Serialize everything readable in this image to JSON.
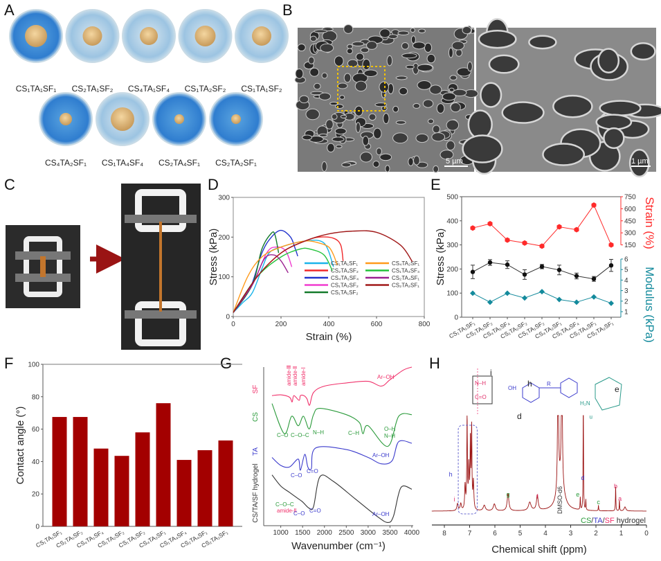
{
  "panel_labels": [
    "A",
    "B",
    "C",
    "D",
    "E",
    "F",
    "G",
    "H"
  ],
  "panel_a": {
    "row1": [
      "CS₁TA₁SF₁",
      "CS₂TA₁SF₂",
      "CS₄TA₁SF₄",
      "CS₁TA₂SF₂",
      "CS₁TA₁SF₂"
    ],
    "row2": [
      "CS₄TA₂SF₁",
      "CS₁TA₄SF₄",
      "CS₂TA₄SF₁",
      "CS₂TA₂SF₁"
    ]
  },
  "panel_b": {
    "scale_left": "5 µm",
    "scale_right": "1 µm"
  },
  "colors": {
    "bar": "#a30000",
    "strain": "#ff2a2a",
    "modulus": "#138a9c",
    "stress": "#111111"
  },
  "chart_data": {
    "D": {
      "type": "line",
      "xlabel": "Strain (%)",
      "ylabel": "Stress (kPa)",
      "xlim": [
        0,
        800
      ],
      "ylim": [
        0,
        300
      ],
      "xticks": [
        "0",
        "200",
        "400",
        "600",
        "800"
      ],
      "yticks": [
        "0",
        "100",
        "200",
        "300"
      ],
      "series": [
        {
          "name": "CS₁TA₁SF₁",
          "color": "#1ab4ea",
          "points": [
            [
              0,
              10
            ],
            [
              40,
              35
            ],
            [
              80,
              60
            ],
            [
              120,
              120
            ],
            [
              150,
              160
            ],
            [
              200,
              175
            ],
            [
              300,
              190
            ],
            [
              380,
              185
            ],
            [
              420,
              125
            ]
          ]
        },
        {
          "name": "CS₂TA₁SF₂",
          "color": "#f0282a",
          "points": [
            [
              0,
              10
            ],
            [
              100,
              100
            ],
            [
              200,
              160
            ],
            [
              300,
              190
            ],
            [
              360,
              200
            ],
            [
              420,
              197
            ],
            [
              450,
              180
            ],
            [
              460,
              140
            ]
          ]
        },
        {
          "name": "CS₄TA₁SF₄",
          "color": "#2233cc",
          "points": [
            [
              0,
              10
            ],
            [
              70,
              70
            ],
            [
              120,
              160
            ],
            [
              160,
              200
            ],
            [
              200,
              217
            ],
            [
              240,
              200
            ],
            [
              260,
              170
            ],
            [
              270,
              152
            ]
          ]
        },
        {
          "name": "CS₁TA₂SF₂",
          "color": "#f03ccf",
          "points": [
            [
              0,
              10
            ],
            [
              80,
              80
            ],
            [
              140,
              160
            ],
            [
              180,
              175
            ],
            [
              220,
              165
            ],
            [
              245,
              125
            ]
          ]
        },
        {
          "name": "CS₁TA₁SF₂",
          "color": "#137a2a",
          "points": [
            [
              0,
              10
            ],
            [
              80,
              80
            ],
            [
              120,
              170
            ],
            [
              160,
              210
            ],
            [
              175,
              205
            ],
            [
              190,
              160
            ]
          ]
        },
        {
          "name": "CS₄TA₂SF₁",
          "color": "#ff9a1a",
          "points": [
            [
              0,
              10
            ],
            [
              60,
              100
            ],
            [
              120,
              150
            ],
            [
              200,
              175
            ],
            [
              300,
              190
            ],
            [
              360,
              185
            ],
            [
              400,
              175
            ],
            [
              420,
              155
            ],
            [
              435,
              130
            ]
          ]
        },
        {
          "name": "CS₁TA₄SF₄",
          "color": "#22c23a",
          "points": [
            [
              0,
              10
            ],
            [
              100,
              100
            ],
            [
              200,
              150
            ],
            [
              280,
              170
            ],
            [
              320,
              170
            ],
            [
              380,
              155
            ],
            [
              415,
              115
            ]
          ]
        },
        {
          "name": "CS₂TA₄SF₁",
          "color": "#9a2090",
          "points": [
            [
              0,
              10
            ],
            [
              80,
              80
            ],
            [
              130,
              145
            ],
            [
              170,
              155
            ],
            [
              200,
              140
            ],
            [
              230,
              110
            ]
          ]
        },
        {
          "name": "CS₂TA₂SF₁",
          "color": "#a01818",
          "points": [
            [
              0,
              10
            ],
            [
              100,
              100
            ],
            [
              200,
              160
            ],
            [
              300,
              190
            ],
            [
              400,
              208
            ],
            [
              500,
              215
            ],
            [
              600,
              212
            ],
            [
              700,
              180
            ],
            [
              750,
              138
            ]
          ]
        }
      ]
    },
    "E": {
      "type": "line",
      "ylabel": "Stress (kPa)",
      "y2label_strain": "Strain (%)",
      "y2label_modulus": "Modulus (kPa)",
      "ylim": [
        0,
        500
      ],
      "yticks": [
        "0",
        "100",
        "200",
        "300",
        "400",
        "500"
      ],
      "strain_ticks": [
        "150",
        "300",
        "450",
        "600",
        "750"
      ],
      "modulus_ticks": [
        "1",
        "2",
        "3",
        "4",
        "5",
        "6"
      ],
      "categories": [
        "CS₁TA₁SF₁",
        "CS₂TA₁SF₂",
        "CS₄TA₁SF₄",
        "CS₁TA₂SF₂",
        "CS₁TA₁SF₂",
        "CS₄TA₂SF₁",
        "CS₁TA₄SF₄",
        "CS₂TA₄SF₁",
        "CS₂TA₂SF₁"
      ],
      "stress": [
        188,
        227,
        218,
        177,
        210,
        196,
        171,
        159,
        215
      ],
      "stress_err": [
        28,
        12,
        16,
        20,
        9,
        20,
        12,
        10,
        25
      ],
      "strain": [
        360,
        414,
        210,
        174,
        135,
        375,
        339,
        645,
        150
      ],
      "modulus": [
        2.75,
        1.9,
        2.75,
        2.3,
        2.9,
        2.15,
        1.9,
        2.4,
        1.8
      ]
    },
    "F": {
      "type": "bar",
      "ylabel": "Contact angle (°)",
      "ylim": [
        0,
        100
      ],
      "yticks": [
        "0",
        "20",
        "40",
        "60",
        "80",
        "100"
      ],
      "categories": [
        "CS₁TA₁SF₁",
        "CS₂TA₁SF₂",
        "CS₄TA₁SF₄",
        "CS₁TA₂SF₂",
        "CS₁TA₁SF₂",
        "CS₄TA₂SF₁",
        "CS₁TA₄SF₄",
        "CS₂TA₄SF₁",
        "CS₂TA₂SF₁"
      ],
      "values": [
        67.5,
        67.5,
        48,
        43.5,
        58,
        76,
        41,
        47,
        53
      ]
    },
    "G": {
      "type": "line",
      "xlabel": "Wavenumber (cm⁻¹)",
      "xlim": [
        800,
        4000
      ],
      "xticks": [
        "1000",
        "1500",
        "2000",
        "2500",
        "3000",
        "3500",
        "4000"
      ],
      "series": [
        {
          "name": "SF",
          "color": "#f0306a",
          "points": [
            [
              800,
              82
            ],
            [
              1000,
              82.5
            ],
            [
              1200,
              81
            ],
            [
              1260,
              78
            ],
            [
              1300,
              82
            ],
            [
              1420,
              79
            ],
            [
              1450,
              82
            ],
            [
              1530,
              82
            ],
            [
              1600,
              80
            ],
            [
              1660,
              76
            ],
            [
              1750,
              84
            ],
            [
              2000,
              88
            ],
            [
              2500,
              90
            ],
            [
              3000,
              91
            ],
            [
              3300,
              88
            ],
            [
              3500,
              92
            ],
            [
              3800,
              98
            ],
            [
              4000,
              100
            ]
          ],
          "annotations": [
            "amide-Ⅲ",
            "amide-Ⅱ",
            "amide-Ⅰ",
            "Ar–OH"
          ]
        },
        {
          "name": "CS",
          "color": "#2a9a3a",
          "points": [
            [
              800,
              77
            ],
            [
              1080,
              58
            ],
            [
              1250,
              69
            ],
            [
              1400,
              63
            ],
            [
              1520,
              69
            ],
            [
              1650,
              61
            ],
            [
              1750,
              70
            ],
            [
              1900,
              74
            ],
            [
              2500,
              70
            ],
            [
              2800,
              65
            ],
            [
              2880,
              58
            ],
            [
              3000,
              63
            ],
            [
              3450,
              50
            ],
            [
              3700,
              69
            ],
            [
              4000,
              70
            ]
          ],
          "annotations": [
            "C–O",
            "C–O–C",
            "N–H",
            "C–H",
            "O–H",
            "N–H"
          ]
        },
        {
          "name": "TA",
          "color": "#3a3acc",
          "points": [
            [
              800,
              43
            ],
            [
              1000,
              38
            ],
            [
              1200,
              37
            ],
            [
              1400,
              42
            ],
            [
              1450,
              35
            ],
            [
              1550,
              45
            ],
            [
              1620,
              37
            ],
            [
              1700,
              36
            ],
            [
              1800,
              49
            ],
            [
              2500,
              48
            ],
            [
              3000,
              43
            ],
            [
              3300,
              39
            ],
            [
              3550,
              41
            ],
            [
              3700,
              53
            ],
            [
              4000,
              52
            ]
          ],
          "annotations": [
            "C–O",
            "C=O",
            "Ar–OH"
          ]
        },
        {
          "name": "CS/TA/SF hydrogel",
          "color": "#333333",
          "points": [
            [
              800,
              32
            ],
            [
              1000,
              25
            ],
            [
              1200,
              21
            ],
            [
              1400,
              17
            ],
            [
              1500,
              15
            ],
            [
              1650,
              11
            ],
            [
              1750,
              12
            ],
            [
              1900,
              31
            ],
            [
              2200,
              28
            ],
            [
              2700,
              17
            ],
            [
              3200,
              6
            ],
            [
              3450,
              2
            ],
            [
              3580,
              6
            ],
            [
              3750,
              24
            ],
            [
              4000,
              23
            ]
          ],
          "annotations": [
            "C–O–C",
            "amide-Ⅱ",
            "C–O",
            "C=O",
            "Ar–OH"
          ]
        }
      ]
    },
    "H": {
      "type": "line",
      "xlabel": "Chemical shift (ppm)",
      "xlim": [
        8.5,
        0
      ],
      "xticks": [
        "8",
        "7",
        "6",
        "5",
        "4",
        "3",
        "2",
        "1",
        "0"
      ],
      "legend": [
        "CS",
        "/",
        "TA",
        "/",
        "SF",
        " hydrogel"
      ],
      "solvent_label": "DMSO-d6",
      "peaks": [
        [
          7.48,
          10,
          0.03
        ],
        [
          7.35,
          10,
          0.03
        ],
        [
          7.18,
          35,
          0.02
        ],
        [
          7.1,
          130,
          0.015
        ],
        [
          7.03,
          60,
          0.02
        ],
        [
          6.97,
          95,
          0.015
        ],
        [
          6.92,
          115,
          0.015
        ],
        [
          6.85,
          40,
          0.02
        ],
        [
          6.42,
          8,
          0.05
        ],
        [
          6.02,
          10,
          0.05
        ],
        [
          5.48,
          25,
          0.04
        ],
        [
          4.62,
          12,
          0.06
        ],
        [
          4.32,
          22,
          0.04
        ],
        [
          3.5,
          220,
          0.02
        ],
        [
          3.4,
          45,
          0.15
        ],
        [
          3.35,
          220,
          0.02
        ],
        [
          2.62,
          18,
          0.01
        ],
        [
          2.5,
          220,
          0.008
        ],
        [
          2.4,
          15,
          0.01
        ],
        [
          1.9,
          8,
          0.01
        ],
        [
          1.22,
          35,
          0.01
        ],
        [
          1.07,
          15,
          0.01
        ],
        [
          0.85,
          6,
          0.04
        ]
      ],
      "peak_labels": [
        [
          "i",
          7.6,
          "#e0306a"
        ],
        [
          "h",
          7.75,
          "#3a3acc"
        ],
        [
          "g",
          5.48,
          "#2a9a3a"
        ],
        [
          "f",
          4.32,
          "#e0306a"
        ],
        [
          "e",
          2.72,
          "#2a9a3a"
        ],
        [
          "d",
          2.52,
          "#3a3acc"
        ],
        [
          "c",
          1.9,
          "#2a9a3a"
        ],
        [
          "b",
          1.22,
          "#e0306a"
        ],
        [
          "a",
          1.05,
          "#e0306a"
        ]
      ],
      "structure_labels": {
        "i": "i",
        "h": "h",
        "d": "d",
        "e": "e",
        "r": "R",
        "n": "n",
        "nh": "N–H",
        "co": "C=O",
        "oh": "OH",
        "h2n": "H₂N"
      }
    }
  }
}
